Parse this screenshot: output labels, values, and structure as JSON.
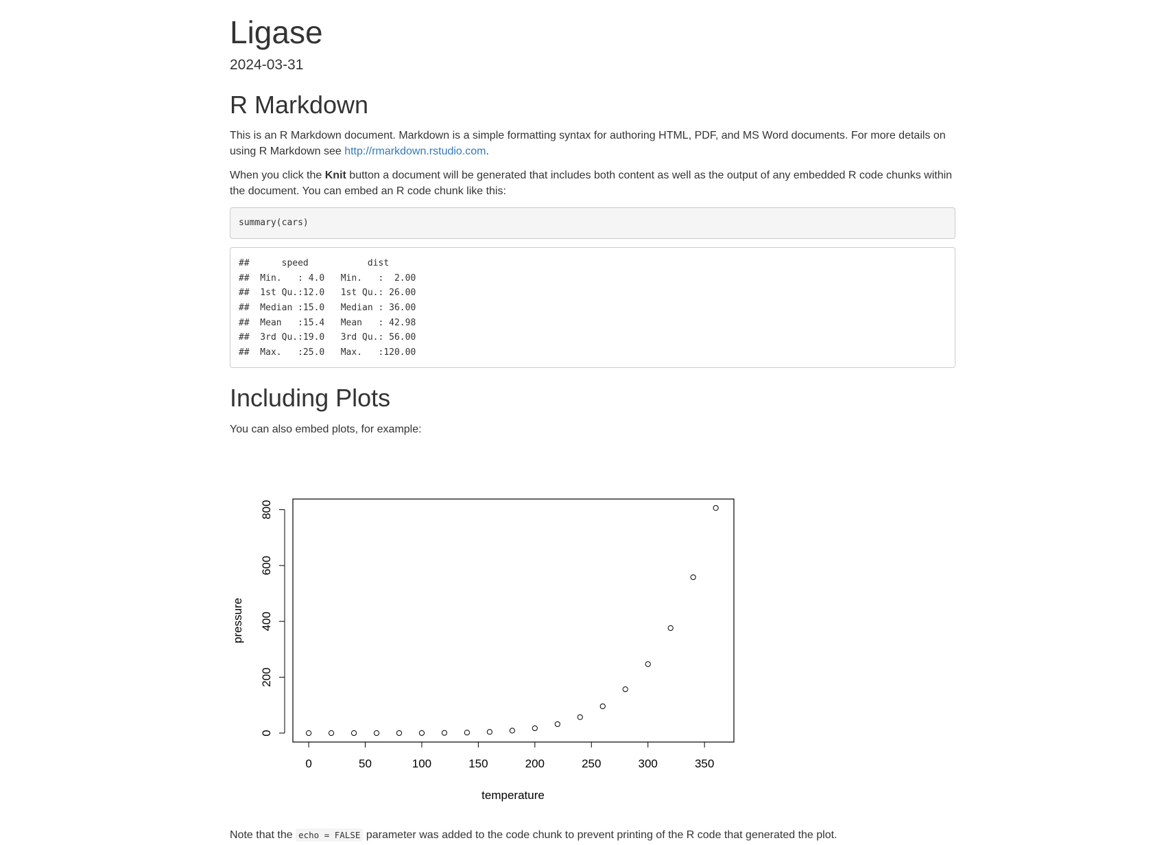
{
  "document": {
    "title": "Ligase",
    "date": "2024-03-31"
  },
  "section_rmarkdown": {
    "heading": "R Markdown",
    "para1_text": "This is an R Markdown document. Markdown is a simple formatting syntax for authoring HTML, PDF, and MS Word documents. For more details on using R Markdown see ",
    "para1_link": "http://rmarkdown.rstudio.com",
    "para1_end": ".",
    "para2_before": "When you click the ",
    "para2_bold": "Knit",
    "para2_after": " button a document will be generated that includes both content as well as the output of any embedded R code chunks within the document. You can embed an R code chunk like this:",
    "code_source": "summary(cars)",
    "code_output": "##      speed           dist       \n##  Min.   : 4.0   Min.   :  2.00  \n##  1st Qu.:12.0   1st Qu.: 26.00  \n##  Median :15.0   Median : 36.00  \n##  Mean   :15.4   Mean   : 42.98  \n##  3rd Qu.:19.0   3rd Qu.: 56.00  \n##  Max.   :25.0   Max.   :120.00  "
  },
  "section_plots": {
    "heading": "Including Plots",
    "para": "You can also embed plots, for example:",
    "note_before": "Note that the ",
    "note_code": "echo = FALSE",
    "note_after": " parameter was added to the code chunk to prevent printing of the R code that generated the plot."
  },
  "chart_data": {
    "type": "scatter",
    "title": "",
    "xlabel": "temperature",
    "ylabel": "pressure",
    "xlim": [
      -14,
      376
    ],
    "ylim": [
      -32,
      838
    ],
    "xticks": [
      0,
      50,
      100,
      150,
      200,
      250,
      300,
      350
    ],
    "yticks": [
      0,
      200,
      400,
      600,
      800
    ],
    "x": [
      0,
      20,
      40,
      60,
      80,
      100,
      120,
      140,
      160,
      180,
      200,
      220,
      240,
      260,
      280,
      300,
      320,
      340,
      360
    ],
    "y": [
      0.0002,
      0.0012,
      0.006,
      0.03,
      0.09,
      0.27,
      0.75,
      1.85,
      4.2,
      8.8,
      17.3,
      32.1,
      57,
      96,
      157,
      247,
      376,
      558,
      806
    ],
    "marker": "open-circle",
    "grid": false
  }
}
